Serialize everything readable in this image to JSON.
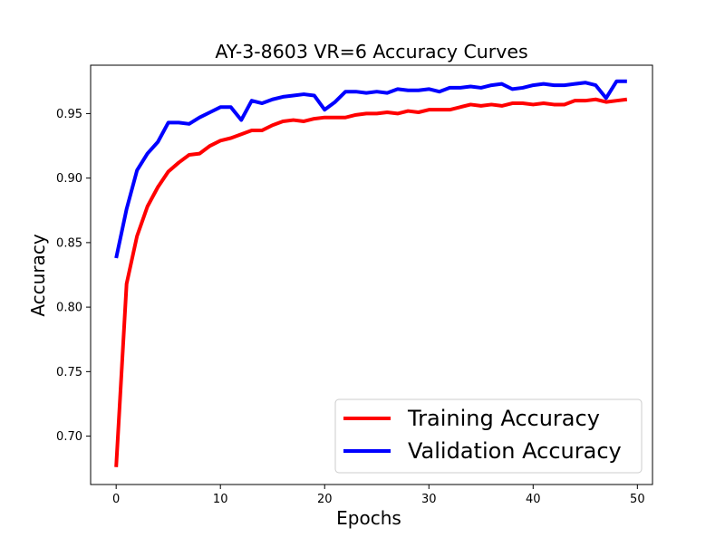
{
  "chart_data": {
    "type": "line",
    "title": "AY-3-8603 VR=6 Accuracy Curves",
    "xlabel": "Epochs",
    "ylabel": "Accuracy",
    "xlim": [
      -2.45,
      51.45
    ],
    "ylim": [
      0.6625,
      0.9875
    ],
    "xticks": [
      0,
      10,
      20,
      30,
      40,
      50
    ],
    "yticks": [
      0.7,
      0.75,
      0.8,
      0.85,
      0.9,
      0.95
    ],
    "xtick_labels": [
      "0",
      "10",
      "20",
      "30",
      "40",
      "50"
    ],
    "ytick_labels": [
      "0.70",
      "0.75",
      "0.80",
      "0.85",
      "0.90",
      "0.95"
    ],
    "grid": false,
    "legend_position": "bottom-right",
    "x": [
      0,
      1,
      2,
      3,
      4,
      5,
      6,
      7,
      8,
      9,
      10,
      11,
      12,
      13,
      14,
      15,
      16,
      17,
      18,
      19,
      20,
      21,
      22,
      23,
      24,
      25,
      26,
      27,
      28,
      29,
      30,
      31,
      32,
      33,
      34,
      35,
      36,
      37,
      38,
      39,
      40,
      41,
      42,
      43,
      44,
      45,
      46,
      47,
      48,
      49
    ],
    "series": [
      {
        "name": "Training Accuracy",
        "color": "#ff0000",
        "values": [
          0.676,
          0.818,
          0.855,
          0.878,
          0.893,
          0.905,
          0.912,
          0.918,
          0.919,
          0.925,
          0.929,
          0.931,
          0.934,
          0.937,
          0.937,
          0.941,
          0.944,
          0.945,
          0.944,
          0.946,
          0.947,
          0.947,
          0.947,
          0.949,
          0.95,
          0.95,
          0.951,
          0.95,
          0.952,
          0.951,
          0.953,
          0.953,
          0.953,
          0.955,
          0.957,
          0.956,
          0.957,
          0.956,
          0.958,
          0.958,
          0.957,
          0.958,
          0.957,
          0.957,
          0.96,
          0.96,
          0.961,
          0.959,
          0.96,
          0.961
        ]
      },
      {
        "name": "Validation Accuracy",
        "color": "#0000ff",
        "values": [
          0.838,
          0.876,
          0.906,
          0.919,
          0.928,
          0.943,
          0.943,
          0.942,
          0.947,
          0.951,
          0.955,
          0.955,
          0.945,
          0.96,
          0.958,
          0.961,
          0.963,
          0.964,
          0.965,
          0.964,
          0.953,
          0.959,
          0.967,
          0.967,
          0.966,
          0.967,
          0.966,
          0.969,
          0.968,
          0.968,
          0.969,
          0.967,
          0.97,
          0.97,
          0.971,
          0.97,
          0.972,
          0.973,
          0.969,
          0.97,
          0.972,
          0.973,
          0.972,
          0.972,
          0.973,
          0.974,
          0.972,
          0.962,
          0.975,
          0.975
        ]
      }
    ]
  }
}
